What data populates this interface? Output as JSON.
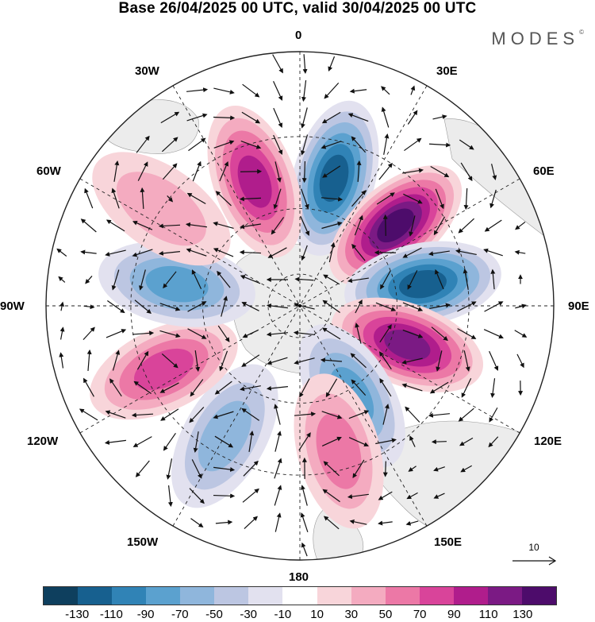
{
  "title": "Base 26/04/2025 00 UTC, valid 30/04/2025 00 UTC",
  "brand": "MODES",
  "brand_mark": "©",
  "lon_labels": {
    "l0": "0",
    "l30e": "30E",
    "l60e": "60E",
    "l90e": "90E",
    "l120e": "120E",
    "l150e": "150E",
    "l180": "180",
    "l150w": "150W",
    "l120w": "120W",
    "l90w": "90W",
    "l60w": "60W",
    "l30w": "30W"
  },
  "reference_vector": {
    "label": "10"
  },
  "colorbar": {
    "colors": [
      "#0e3f5e",
      "#17608f",
      "#3083b6",
      "#5ba1cf",
      "#8fb6dc",
      "#bcc6e2",
      "#e2e1ef",
      "#ffffff",
      "#f8d5da",
      "#f4abc0",
      "#ec78a6",
      "#d9449a",
      "#b01d8c",
      "#7b1a84",
      "#4d0c6b"
    ],
    "tick_labels": [
      "-130",
      "-110",
      "-90",
      "-70",
      "-50",
      "-30",
      "-10",
      "10",
      "30",
      "50",
      "70",
      "90",
      "110",
      "130"
    ]
  },
  "map_data": {
    "projection": "south polar stereographic",
    "field": "anomaly shading with flow vectors",
    "anomalies": [
      {
        "lon": 15,
        "lat": -50,
        "value": -120
      },
      {
        "lon": 50,
        "lat": -52,
        "value": 130
      },
      {
        "lon": 80,
        "lat": -52,
        "value": -125
      },
      {
        "lon": 110,
        "lat": -55,
        "value": 110
      },
      {
        "lon": 150,
        "lat": -58,
        "value": -80
      },
      {
        "lon": 165,
        "lat": -45,
        "value": 50
      },
      {
        "lon": -150,
        "lat": -45,
        "value": -60
      },
      {
        "lon": -115,
        "lat": -45,
        "value": 75
      },
      {
        "lon": -80,
        "lat": -52,
        "value": -70
      },
      {
        "lon": -20,
        "lat": -50,
        "value": 95
      },
      {
        "lon": -55,
        "lat": -40,
        "value": 30
      }
    ]
  }
}
